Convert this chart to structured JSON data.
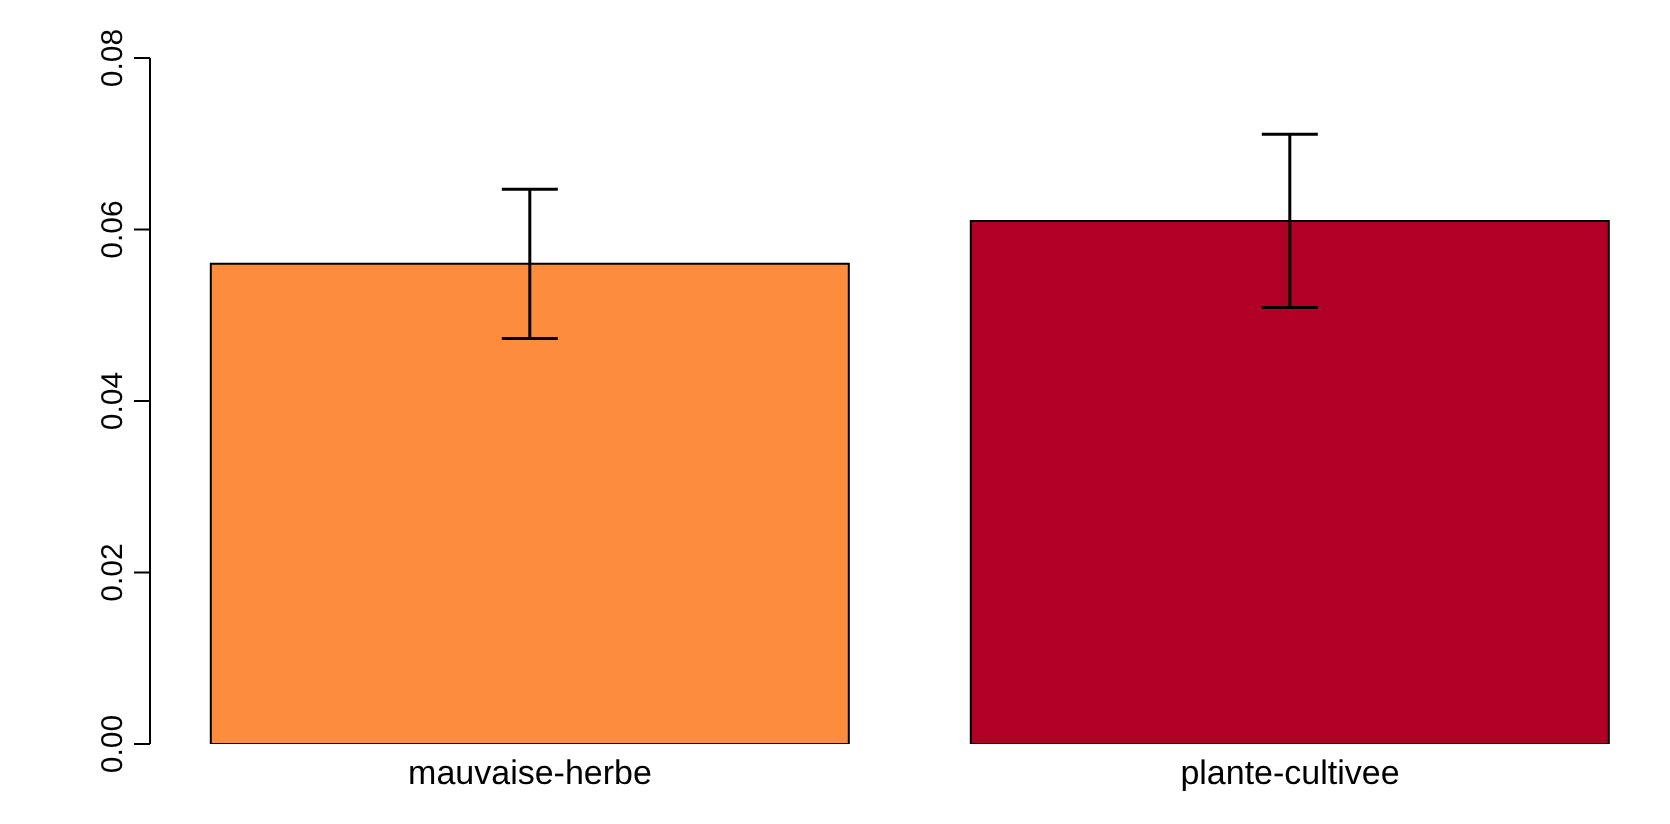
{
  "chart_data": {
    "type": "bar",
    "categories": [
      "mauvaise-herbe",
      "plante-cultivee"
    ],
    "values": [
      0.056,
      0.061
    ],
    "colors": [
      "#fd8d3c",
      "#b10026"
    ],
    "errors": [
      0.0087,
      0.0101
    ],
    "ylim": [
      0,
      0.08
    ],
    "yticks": [
      {
        "value": 0,
        "label": "0.00"
      },
      {
        "value": 0.02,
        "label": "0.02"
      },
      {
        "value": 0.04,
        "label": "0.04"
      },
      {
        "value": 0.06,
        "label": "0.06"
      },
      {
        "value": 0.08,
        "label": "0.08"
      }
    ],
    "grid": false,
    "legend": false
  }
}
